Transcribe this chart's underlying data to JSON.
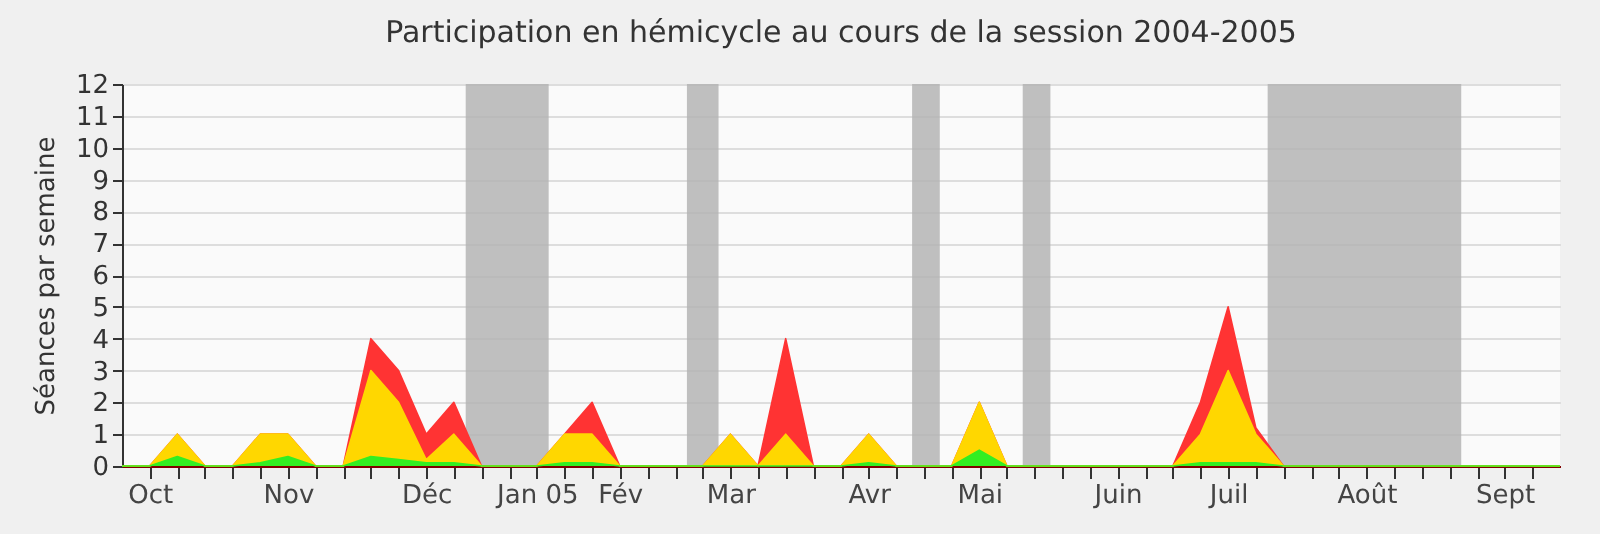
{
  "chart_data": {
    "type": "area",
    "title": "Participation en hémicycle au cours de la session 2004-2005",
    "ylabel": "Séances par semaine",
    "x": [
      "2004-09-30",
      "2004-10-07",
      "2004-10-14",
      "2004-10-21",
      "2004-10-28",
      "2004-11-04",
      "2004-11-11",
      "2004-11-18",
      "2004-11-25",
      "2004-12-02",
      "2004-12-09",
      "2004-12-16",
      "2004-12-23",
      "2004-12-30",
      "2005-01-06",
      "2005-01-13",
      "2005-01-20",
      "2005-01-27",
      "2005-02-03",
      "2005-02-10",
      "2005-02-17",
      "2005-02-24",
      "2005-03-03",
      "2005-03-10",
      "2005-03-17",
      "2005-03-24",
      "2005-03-31",
      "2005-04-07",
      "2005-04-14",
      "2005-04-21",
      "2005-04-28",
      "2005-05-05",
      "2005-05-12",
      "2005-05-19",
      "2005-05-26",
      "2005-06-02",
      "2005-06-09",
      "2005-06-16",
      "2005-06-23",
      "2005-06-30",
      "2005-07-07",
      "2005-07-14",
      "2005-07-21",
      "2005-07-28",
      "2005-08-04",
      "2005-08-11",
      "2005-08-18",
      "2005-08-25",
      "2005-09-01",
      "2005-09-08",
      "2005-09-15",
      "2005-09-22",
      "2005-09-29"
    ],
    "series": [
      {
        "color": "#ff3333",
        "values": [
          0,
          0,
          1,
          0,
          0,
          1,
          1,
          0,
          0,
          4,
          3,
          1,
          2,
          0,
          0,
          0,
          1,
          2,
          0,
          0,
          0,
          0,
          1,
          0,
          4,
          0,
          0,
          1,
          0,
          0,
          0,
          2,
          0,
          0,
          0,
          0,
          0,
          0,
          0,
          2,
          5,
          1.2,
          0,
          0,
          0,
          0,
          0,
          0,
          0,
          0,
          0,
          0,
          0
        ]
      },
      {
        "color": "#ffd700",
        "values": [
          0,
          0,
          1,
          0,
          0,
          1,
          1,
          0,
          0,
          3,
          2,
          0.2,
          1,
          0,
          0,
          0,
          1,
          1,
          0,
          0,
          0,
          0,
          1,
          0,
          1,
          0,
          0,
          1,
          0,
          0,
          0,
          2,
          0,
          0,
          0,
          0,
          0,
          0,
          0,
          1,
          3,
          1,
          0,
          0,
          0,
          0,
          0,
          0,
          0,
          0,
          0,
          0,
          0
        ]
      },
      {
        "color": "#33ee22",
        "values": [
          0,
          0,
          0.3,
          0,
          0,
          0.1,
          0.3,
          0,
          0,
          0.3,
          0.2,
          0.1,
          0.1,
          0,
          0,
          0,
          0.1,
          0.1,
          0,
          0,
          0,
          0,
          0,
          0,
          0,
          0,
          0,
          0.1,
          0,
          0,
          0,
          0.5,
          0,
          0,
          0,
          0,
          0,
          0,
          0,
          0.1,
          0.1,
          0.1,
          0,
          0,
          0,
          0,
          0,
          0,
          0,
          0,
          0,
          0,
          0
        ]
      }
    ],
    "xlim": [
      "2004-09-30",
      "2005-09-29"
    ],
    "xticks": [
      {
        "value": "2004-10-07",
        "label": "Oct"
      },
      {
        "value": "2004-10-14",
        "label": null
      },
      {
        "value": "2004-10-21",
        "label": null
      },
      {
        "value": "2004-10-28",
        "label": null
      },
      {
        "value": "2004-11-04",
        "label": null
      },
      {
        "value": "2004-11-11",
        "label": "Nov"
      },
      {
        "value": "2004-11-18",
        "label": null
      },
      {
        "value": "2004-11-25",
        "label": null
      },
      {
        "value": "2004-12-02",
        "label": null
      },
      {
        "value": "2004-12-09",
        "label": null
      },
      {
        "value": "2004-12-16",
        "label": "Déc"
      },
      {
        "value": "2004-12-23",
        "label": null
      },
      {
        "value": "2004-12-30",
        "label": null
      },
      {
        "value": "2005-01-06",
        "label": null
      },
      {
        "value": "2005-01-13",
        "label": "Jan 05"
      },
      {
        "value": "2005-01-20",
        "label": null
      },
      {
        "value": "2005-01-27",
        "label": null
      },
      {
        "value": "2005-02-03",
        "label": "Fév"
      },
      {
        "value": "2005-02-10",
        "label": null
      },
      {
        "value": "2005-02-17",
        "label": null
      },
      {
        "value": "2005-02-24",
        "label": null
      },
      {
        "value": "2005-03-03",
        "label": "Mar"
      },
      {
        "value": "2005-03-10",
        "label": null
      },
      {
        "value": "2005-03-17",
        "label": null
      },
      {
        "value": "2005-03-24",
        "label": null
      },
      {
        "value": "2005-03-31",
        "label": null
      },
      {
        "value": "2005-04-07",
        "label": "Avr"
      },
      {
        "value": "2005-04-14",
        "label": null
      },
      {
        "value": "2005-04-21",
        "label": null
      },
      {
        "value": "2005-04-28",
        "label": null
      },
      {
        "value": "2005-05-05",
        "label": "Mai"
      },
      {
        "value": "2005-05-12",
        "label": null
      },
      {
        "value": "2005-05-19",
        "label": null
      },
      {
        "value": "2005-05-26",
        "label": null
      },
      {
        "value": "2005-06-02",
        "label": null
      },
      {
        "value": "2005-06-09",
        "label": "Juin"
      },
      {
        "value": "2005-06-16",
        "label": null
      },
      {
        "value": "2005-06-23",
        "label": null
      },
      {
        "value": "2005-06-30",
        "label": null
      },
      {
        "value": "2005-07-07",
        "label": "Juil"
      },
      {
        "value": "2005-07-14",
        "label": null
      },
      {
        "value": "2005-07-21",
        "label": null
      },
      {
        "value": "2005-07-28",
        "label": null
      },
      {
        "value": "2005-08-04",
        "label": null
      },
      {
        "value": "2005-08-11",
        "label": "Août"
      },
      {
        "value": "2005-08-18",
        "label": null
      },
      {
        "value": "2005-08-25",
        "label": null
      },
      {
        "value": "2005-09-01",
        "label": null
      },
      {
        "value": "2005-09-08",
        "label": null
      },
      {
        "value": "2005-09-15",
        "label": "Sept"
      },
      {
        "value": "2005-09-22",
        "label": null
      }
    ],
    "ylim": [
      0,
      12
    ],
    "yticks": [
      0,
      1,
      2,
      3,
      4,
      5,
      6,
      7,
      8,
      9,
      10,
      11,
      12
    ],
    "grid": "y",
    "bands": [
      {
        "axis": "x",
        "from": "2004-12-26",
        "to": "2005-01-16",
        "color": "#b4b4b4"
      },
      {
        "axis": "x",
        "from": "2005-02-20",
        "to": "2005-02-28",
        "color": "#b4b4b4"
      },
      {
        "axis": "x",
        "from": "2005-04-18",
        "to": "2005-04-25",
        "color": "#b4b4b4"
      },
      {
        "axis": "x",
        "from": "2005-05-16",
        "to": "2005-05-23",
        "color": "#b4b4b4"
      },
      {
        "axis": "x",
        "from": "2005-07-17",
        "to": "2005-09-04",
        "color": "#b4b4b4"
      }
    ]
  }
}
